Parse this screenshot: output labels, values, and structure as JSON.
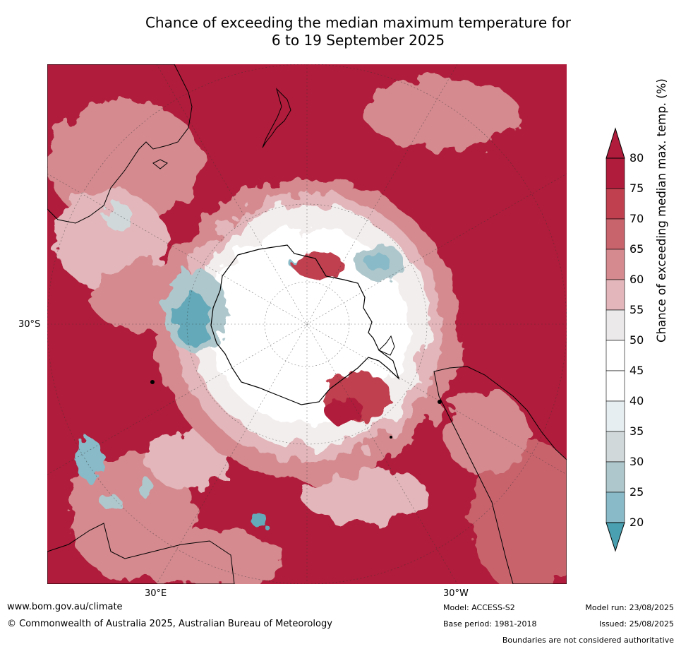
{
  "title": {
    "line1": "Chance of exceeding the median maximum temperature for",
    "line2": "6 to 19 September 2025"
  },
  "map": {
    "projection": "south-polar-stereographic",
    "lat_label": "30°S",
    "lon_label_left": "30°E",
    "lon_label_right": "30°W",
    "regions_depicted": [
      "Antarctica",
      "Australia",
      "New Zealand",
      "South America",
      "Southern Africa"
    ]
  },
  "colorbar": {
    "title": "Chance of exceeding median max. temp. (%)",
    "ticks": [
      "80",
      "75",
      "70",
      "65",
      "60",
      "55",
      "50",
      "45",
      "40",
      "35",
      "30",
      "25",
      "20"
    ],
    "colors": [
      "#b01c3b",
      "#c0404f",
      "#c8646c",
      "#d48a8f",
      "#e2b6ba",
      "#ebe9e9",
      "#ffffff",
      "#ffffff",
      "#e7eef1",
      "#d1d8da",
      "#aec7cc",
      "#88bac7",
      "#64a9b9"
    ],
    "extend_top_color": "#b01c3b",
    "extend_bottom_color": "#4aa0b0"
  },
  "footer": {
    "website": "www.bom.gov.au/climate",
    "copyright": "© Commonwealth of Australia 2025, Australian Bureau of Meteorology",
    "model": "Model: ACCESS-S2",
    "base_period": "Base period: 1981-2018",
    "model_run": "Model run: 23/08/2025",
    "issued": "Issued: 25/08/2025",
    "disclaimer": "Boundaries are not considered authoritative"
  }
}
